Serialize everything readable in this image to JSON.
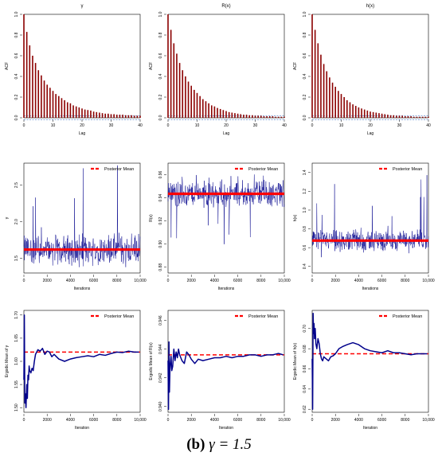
{
  "caption": {
    "label": "(b)",
    "text": "γ = 1.5"
  },
  "colors": {
    "acf_bar": "#8b0000",
    "trace": "#00008b",
    "posterior": "#ff0000",
    "axis": "#000000"
  },
  "chart_data": [
    {
      "type": "bar",
      "role": "acf",
      "title": "γ",
      "xlabel": "Lag",
      "ylabel": "ACF",
      "xlim": [
        0,
        40
      ],
      "ylim": [
        0,
        1
      ],
      "xticks": [
        "0",
        "10",
        "20",
        "30",
        "40"
      ],
      "yticks": [
        "0.0",
        "0.2",
        "0.4",
        "0.6",
        "0.8",
        "1.0"
      ],
      "lags": [
        0,
        1,
        2,
        3,
        4,
        5,
        6,
        7,
        8,
        9,
        10,
        11,
        12,
        13,
        14,
        15,
        16,
        17,
        18,
        19,
        20,
        21,
        22,
        23,
        24,
        25,
        26,
        27,
        28,
        29,
        30,
        31,
        32,
        33,
        34,
        35,
        36,
        37,
        38,
        39,
        40
      ],
      "values": [
        1.0,
        0.83,
        0.7,
        0.6,
        0.53,
        0.46,
        0.41,
        0.36,
        0.32,
        0.29,
        0.26,
        0.23,
        0.21,
        0.19,
        0.17,
        0.15,
        0.14,
        0.12,
        0.11,
        0.1,
        0.09,
        0.08,
        0.075,
        0.07,
        0.06,
        0.055,
        0.05,
        0.045,
        0.04,
        0.04,
        0.035,
        0.035,
        0.03,
        0.03,
        0.03,
        0.025,
        0.025,
        0.025,
        0.02,
        0.02,
        0.02
      ]
    },
    {
      "type": "bar",
      "role": "acf",
      "title": "R(x)",
      "xlabel": "Lag",
      "ylabel": "ACF",
      "xlim": [
        0,
        40
      ],
      "ylim": [
        0,
        1
      ],
      "xticks": [
        "0",
        "10",
        "20",
        "30",
        "40"
      ],
      "yticks": [
        "0.0",
        "0.2",
        "0.4",
        "0.6",
        "0.8",
        "1.0"
      ],
      "lags": [
        0,
        1,
        2,
        3,
        4,
        5,
        6,
        7,
        8,
        9,
        10,
        11,
        12,
        13,
        14,
        15,
        16,
        17,
        18,
        19,
        20,
        21,
        22,
        23,
        24,
        25,
        26,
        27,
        28,
        29,
        30,
        31,
        32,
        33,
        34,
        35,
        36,
        37,
        38,
        39,
        40
      ],
      "values": [
        1.0,
        0.85,
        0.72,
        0.62,
        0.53,
        0.46,
        0.4,
        0.35,
        0.31,
        0.27,
        0.24,
        0.21,
        0.18,
        0.16,
        0.14,
        0.12,
        0.11,
        0.095,
        0.085,
        0.075,
        0.065,
        0.055,
        0.05,
        0.045,
        0.04,
        0.035,
        0.03,
        0.03,
        0.025,
        0.025,
        0.02,
        0.02,
        0.02,
        0.015,
        0.015,
        0.015,
        0.015,
        0.01,
        0.01,
        0.01,
        0.01
      ]
    },
    {
      "type": "bar",
      "role": "acf",
      "title": "h(x)",
      "xlabel": "Lag",
      "ylabel": "ACF",
      "xlim": [
        0,
        40
      ],
      "ylim": [
        0,
        1
      ],
      "xticks": [
        "0",
        "10",
        "20",
        "30",
        "40"
      ],
      "yticks": [
        "0.0",
        "0.2",
        "0.4",
        "0.6",
        "0.8",
        "1.0"
      ],
      "lags": [
        0,
        1,
        2,
        3,
        4,
        5,
        6,
        7,
        8,
        9,
        10,
        11,
        12,
        13,
        14,
        15,
        16,
        17,
        18,
        19,
        20,
        21,
        22,
        23,
        24,
        25,
        26,
        27,
        28,
        29,
        30,
        31,
        32,
        33,
        34,
        35,
        36,
        37,
        38,
        39,
        40
      ],
      "values": [
        1.0,
        0.85,
        0.72,
        0.61,
        0.52,
        0.45,
        0.39,
        0.34,
        0.3,
        0.26,
        0.23,
        0.2,
        0.17,
        0.15,
        0.13,
        0.115,
        0.1,
        0.09,
        0.08,
        0.07,
        0.06,
        0.055,
        0.05,
        0.045,
        0.04,
        0.035,
        0.03,
        0.025,
        0.025,
        0.02,
        0.02,
        0.02,
        0.015,
        0.015,
        0.015,
        0.01,
        0.01,
        0.01,
        0.01,
        0.01,
        0.01
      ]
    },
    {
      "type": "line",
      "role": "trace",
      "xlabel": "Iterations",
      "ylabel": "γ",
      "legend": "Posterior Mean",
      "legend_position": "top-right",
      "xlim": [
        0,
        10000
      ],
      "ylim": [
        1.3,
        2.8
      ],
      "xticks": [
        "0",
        "2000",
        "4000",
        "6000",
        "8000",
        "10,000"
      ],
      "xtick_values": [
        0,
        2000,
        4000,
        6000,
        8000,
        10000
      ],
      "yticks": [
        "1.5",
        "2.0",
        "2.5"
      ],
      "ytick_values": [
        1.5,
        2.0,
        2.5
      ],
      "posterior_mean": 1.62,
      "spread": 0.15,
      "spike_up": 1.2,
      "spike_down": 0.3,
      "lower_bound": 1.38,
      "n_points": 380
    },
    {
      "type": "line",
      "role": "trace",
      "xlabel": "Iterations",
      "ylabel": "R(x)",
      "legend": "Posterior Mean",
      "legend_position": "top-right",
      "xlim": [
        0,
        10000
      ],
      "ylim": [
        0.875,
        0.97
      ],
      "xticks": [
        "0",
        "2000",
        "4000",
        "6000",
        "8000",
        "10,000"
      ],
      "xtick_values": [
        0,
        2000,
        4000,
        6000,
        8000,
        10000
      ],
      "yticks": [
        "0.88",
        "0.90",
        "0.92",
        "0.94",
        "0.96"
      ],
      "ytick_values": [
        0.88,
        0.9,
        0.92,
        0.94,
        0.96
      ],
      "posterior_mean": 0.9435,
      "spread": 0.008,
      "spike_up": 0.02,
      "spike_down": 0.06,
      "upper_bound": 0.965,
      "n_points": 380
    },
    {
      "type": "line",
      "role": "trace",
      "xlabel": "Iterations",
      "ylabel": "h(x)",
      "legend": "Posterior Mean",
      "legend_position": "top-right",
      "xlim": [
        0,
        10000
      ],
      "ylim": [
        0.33,
        1.5
      ],
      "xticks": [
        "0",
        "2000",
        "4000",
        "6000",
        "8000",
        "10,000"
      ],
      "xtick_values": [
        0,
        2000,
        4000,
        6000,
        8000,
        10000
      ],
      "yticks": [
        "0.4",
        "0.6",
        "0.8",
        "1.0",
        "1.2",
        "1.4"
      ],
      "ytick_values": [
        0.4,
        0.6,
        0.8,
        1.0,
        1.2,
        1.4
      ],
      "posterior_mean": 0.675,
      "spread": 0.08,
      "spike_up": 0.8,
      "spike_down": 0.2,
      "lower_bound": 0.36,
      "n_points": 380
    },
    {
      "type": "line",
      "role": "ergodic",
      "xlabel": "Iteration",
      "ylabel": "Ergodic Mean of γ",
      "legend": "Posterior Mean",
      "legend_position": "top-right",
      "xlim": [
        0,
        10000
      ],
      "ylim": [
        1.49,
        1.71
      ],
      "xticks": [
        "0",
        "2000",
        "4000",
        "6000",
        "8000",
        "10,000"
      ],
      "xtick_values": [
        0,
        2000,
        4000,
        6000,
        8000,
        10000
      ],
      "yticks": [
        "1.50",
        "1.55",
        "1.60",
        "1.65",
        "1.70"
      ],
      "ytick_values": [
        1.5,
        1.55,
        1.6,
        1.65,
        1.7
      ],
      "posterior_mean": 1.62,
      "path_x": [
        0,
        40,
        80,
        120,
        180,
        250,
        300,
        350,
        400,
        450,
        500,
        600,
        700,
        800,
        900,
        1000,
        1200,
        1400,
        1600,
        1800,
        2000,
        2200,
        2400,
        2600,
        2800,
        3000,
        3500,
        4000,
        4500,
        5000,
        5500,
        6000,
        6500,
        7000,
        7500,
        8000,
        8500,
        9000,
        9500,
        9900
      ],
      "path_y": [
        1.56,
        1.7,
        1.51,
        1.53,
        1.5,
        1.55,
        1.52,
        1.57,
        1.56,
        1.59,
        1.58,
        1.575,
        1.585,
        1.58,
        1.6,
        1.615,
        1.625,
        1.622,
        1.628,
        1.615,
        1.622,
        1.62,
        1.61,
        1.615,
        1.61,
        1.605,
        1.6,
        1.605,
        1.608,
        1.61,
        1.612,
        1.61,
        1.615,
        1.613,
        1.617,
        1.62,
        1.619,
        1.622,
        1.62,
        1.62
      ]
    },
    {
      "type": "line",
      "role": "ergodic",
      "xlabel": "Iteration",
      "ylabel": "Ergodic Mean of R(x)",
      "legend": "Posterior Mean",
      "legend_position": "top-right",
      "xlim": [
        0,
        10000
      ],
      "ylim": [
        0.9396,
        0.9467
      ],
      "xticks": [
        "0",
        "2000",
        "4000",
        "6000",
        "8000",
        "10,000"
      ],
      "xtick_values": [
        0,
        2000,
        4000,
        6000,
        8000,
        10000
      ],
      "yticks": [
        "0.940",
        "0.942",
        "0.944",
        "0.946"
      ],
      "ytick_values": [
        0.94,
        0.942,
        0.944,
        0.946
      ],
      "posterior_mean": 0.9436,
      "path_x": [
        0,
        40,
        80,
        120,
        160,
        200,
        260,
        320,
        400,
        500,
        600,
        700,
        800,
        900,
        1000,
        1200,
        1400,
        1600,
        1800,
        2000,
        2300,
        2600,
        3000,
        3500,
        4000,
        4500,
        5000,
        5500,
        6000,
        6500,
        7000,
        7500,
        8000,
        8500,
        9000,
        9500,
        9900
      ],
      "path_y": [
        0.9432,
        0.9398,
        0.9445,
        0.941,
        0.9425,
        0.943,
        0.9435,
        0.9425,
        0.9428,
        0.944,
        0.9432,
        0.9438,
        0.9434,
        0.944,
        0.9436,
        0.9432,
        0.943,
        0.9438,
        0.9436,
        0.9433,
        0.943,
        0.9433,
        0.9432,
        0.9433,
        0.9434,
        0.9434,
        0.9435,
        0.9434,
        0.9435,
        0.9435,
        0.9436,
        0.9436,
        0.9435,
        0.9436,
        0.9436,
        0.9437,
        0.9436
      ]
    },
    {
      "type": "line",
      "role": "ergodic",
      "xlabel": "Iteration",
      "ylabel": "Ergodic Mean of h(x)",
      "legend": "Posterior Mean",
      "legend_position": "top-right",
      "xlim": [
        0,
        10000
      ],
      "ylim": [
        0.617,
        0.718
      ],
      "xticks": [
        "0",
        "2000",
        "4000",
        "6000",
        "8000",
        "10,000"
      ],
      "xtick_values": [
        0,
        2000,
        4000,
        6000,
        8000,
        10000
      ],
      "yticks": [
        "0.62",
        "0.64",
        "0.66",
        "0.68",
        "0.70"
      ],
      "ytick_values": [
        0.62,
        0.64,
        0.66,
        0.68,
        0.7
      ],
      "posterior_mean": 0.675,
      "path_x": [
        0,
        40,
        80,
        120,
        160,
        200,
        260,
        320,
        400,
        500,
        600,
        700,
        800,
        900,
        1000,
        1200,
        1400,
        1600,
        1800,
        2000,
        2300,
        2600,
        3000,
        3500,
        4000,
        4500,
        5000,
        5500,
        6000,
        6500,
        7000,
        7500,
        8000,
        8500,
        9000,
        9500,
        9900
      ],
      "path_y": [
        0.67,
        0.62,
        0.715,
        0.695,
        0.705,
        0.69,
        0.7,
        0.685,
        0.68,
        0.69,
        0.685,
        0.675,
        0.67,
        0.668,
        0.672,
        0.67,
        0.668,
        0.672,
        0.673,
        0.675,
        0.68,
        0.682,
        0.684,
        0.686,
        0.684,
        0.68,
        0.678,
        0.677,
        0.676,
        0.678,
        0.676,
        0.676,
        0.675,
        0.674,
        0.675,
        0.675,
        0.675
      ]
    }
  ]
}
